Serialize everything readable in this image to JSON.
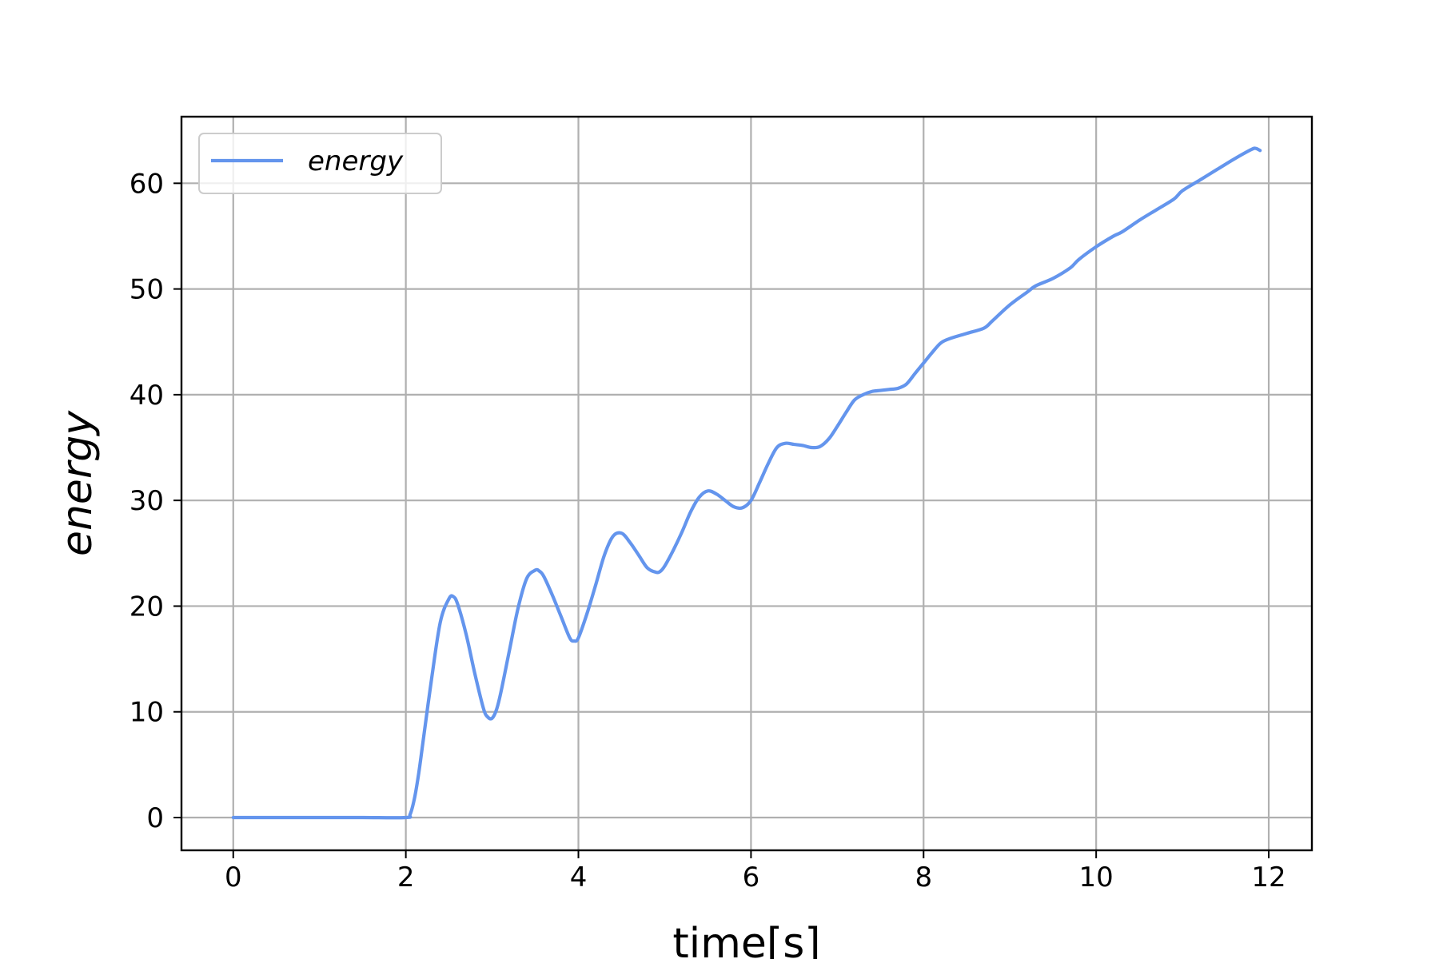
{
  "chart_data": {
    "type": "line",
    "title": "",
    "xlabel": "time[s]",
    "ylabel": "energy",
    "xlim": [
      -0.6,
      12.5
    ],
    "ylim": [
      -3.1,
      66.3
    ],
    "xticks": [
      0,
      2,
      4,
      6,
      8,
      10,
      12
    ],
    "yticks": [
      0,
      10,
      20,
      30,
      40,
      50,
      60
    ],
    "grid": true,
    "legend_position": "upper-left",
    "series": [
      {
        "name": "energy",
        "color": "#6495ED",
        "x": [
          0,
          0.5,
          1.0,
          1.5,
          2.0,
          2.05,
          2.1,
          2.15,
          2.2,
          2.3,
          2.4,
          2.5,
          2.55,
          2.6,
          2.7,
          2.8,
          2.9,
          2.95,
          3.0,
          3.05,
          3.1,
          3.2,
          3.3,
          3.4,
          3.5,
          3.55,
          3.6,
          3.7,
          3.8,
          3.9,
          3.95,
          4.0,
          4.1,
          4.2,
          4.3,
          4.4,
          4.5,
          4.6,
          4.7,
          4.8,
          4.9,
          4.95,
          5.0,
          5.1,
          5.2,
          5.3,
          5.4,
          5.5,
          5.6,
          5.7,
          5.8,
          5.9,
          6.0,
          6.1,
          6.2,
          6.3,
          6.4,
          6.5,
          6.6,
          6.7,
          6.8,
          6.9,
          7.0,
          7.1,
          7.2,
          7.3,
          7.4,
          7.5,
          7.6,
          7.7,
          7.8,
          7.9,
          8.0,
          8.1,
          8.2,
          8.3,
          8.5,
          8.7,
          8.8,
          9.0,
          9.2,
          9.3,
          9.5,
          9.7,
          9.8,
          10.0,
          10.2,
          10.3,
          10.5,
          10.7,
          10.9,
          11.0,
          11.2,
          11.4,
          11.6,
          11.8,
          11.85,
          11.9
        ],
        "y": [
          0,
          0,
          0,
          0,
          0,
          0.3,
          1.8,
          4.2,
          7.2,
          13.2,
          18.5,
          20.7,
          20.9,
          20.2,
          17.3,
          13.6,
          10.3,
          9.5,
          9.4,
          10.2,
          11.8,
          15.8,
          19.8,
          22.6,
          23.4,
          23.3,
          22.8,
          21.0,
          19.0,
          17.0,
          16.7,
          17.0,
          19.3,
          22.0,
          24.8,
          26.6,
          26.9,
          26.0,
          24.8,
          23.6,
          23.2,
          23.3,
          23.8,
          25.3,
          27.0,
          28.9,
          30.3,
          30.9,
          30.6,
          30.0,
          29.4,
          29.3,
          30.0,
          31.7,
          33.5,
          35.0,
          35.4,
          35.3,
          35.2,
          35.0,
          35.1,
          35.8,
          37.0,
          38.3,
          39.5,
          40.0,
          40.3,
          40.4,
          40.5,
          40.6,
          41.0,
          42.0,
          43.0,
          44.0,
          44.9,
          45.3,
          45.8,
          46.3,
          47.0,
          48.5,
          49.7,
          50.3,
          51.0,
          52.0,
          52.8,
          54.0,
          55.0,
          55.4,
          56.5,
          57.5,
          58.5,
          59.3,
          60.3,
          61.3,
          62.3,
          63.2,
          63.3,
          63.1
        ]
      }
    ]
  }
}
